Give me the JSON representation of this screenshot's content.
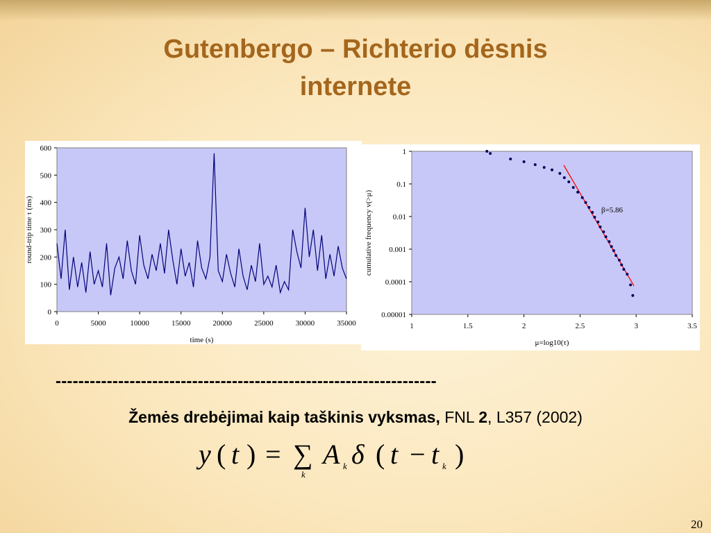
{
  "title": [
    "Gutenbergo – Richterio  dėsnis",
    "internete"
  ],
  "chart_data": [
    {
      "type": "line",
      "xlabel": "time (s)",
      "ylabel": "round-trip time τ (ms)",
      "color": "#00007a",
      "background": "#c8c8f8",
      "x": [
        0,
        500,
        1000,
        1500,
        2000,
        2500,
        3000,
        3500,
        4000,
        4500,
        5000,
        5500,
        6000,
        6500,
        7000,
        7500,
        8000,
        8500,
        9000,
        9500,
        10000,
        10500,
        11000,
        11500,
        12000,
        12500,
        13000,
        13500,
        14000,
        14500,
        15000,
        15500,
        16000,
        16500,
        17000,
        17500,
        18000,
        18500,
        19000,
        19500,
        20000,
        20500,
        21000,
        21500,
        22000,
        22500,
        23000,
        23500,
        24000,
        24500,
        25000,
        25500,
        26000,
        26500,
        27000,
        27500,
        28000,
        28500,
        29000,
        29500,
        30000,
        30500,
        31000,
        31500,
        32000,
        32500,
        33000,
        33500,
        34000,
        34500,
        35000
      ],
      "values": [
        250,
        120,
        300,
        80,
        200,
        90,
        180,
        70,
        220,
        100,
        150,
        90,
        250,
        60,
        160,
        200,
        120,
        260,
        150,
        100,
        280,
        170,
        120,
        210,
        150,
        250,
        140,
        300,
        190,
        100,
        230,
        130,
        180,
        90,
        260,
        160,
        120,
        200,
        580,
        150,
        110,
        210,
        140,
        90,
        230,
        130,
        80,
        170,
        110,
        250,
        100,
        130,
        90,
        170,
        70,
        110,
        80,
        300,
        220,
        160,
        380,
        200,
        300,
        150,
        280,
        120,
        210,
        130,
        240,
        160,
        120
      ],
      "xlim": [
        0,
        35000
      ],
      "ylim": [
        0,
        600
      ],
      "xticks": [
        0,
        5000,
        10000,
        15000,
        20000,
        25000,
        30000,
        35000
      ],
      "yticks": [
        0,
        100,
        200,
        300,
        400,
        500,
        600
      ]
    },
    {
      "type": "scatter",
      "xlabel": "μ=log10(τ)",
      "ylabel": "cumulative frequency  v(>μ)",
      "color": "#00005a",
      "background": "#c8c8f8",
      "ylog": true,
      "x": [
        1.67,
        1.7,
        1.88,
        2.0,
        2.1,
        2.18,
        2.25,
        2.32,
        2.36,
        2.4,
        2.44,
        2.48,
        2.52,
        2.55,
        2.58,
        2.61,
        2.63,
        2.66,
        2.68,
        2.71,
        2.73,
        2.76,
        2.78,
        2.8,
        2.82,
        2.85,
        2.87,
        2.89,
        2.92,
        2.95,
        2.97
      ],
      "values": [
        1,
        0.86,
        0.58,
        0.48,
        0.39,
        0.32,
        0.27,
        0.21,
        0.155,
        0.116,
        0.078,
        0.056,
        0.038,
        0.027,
        0.019,
        0.0134,
        0.0095,
        0.0068,
        0.0048,
        0.0034,
        0.0024,
        0.0017,
        0.0012,
        0.0009,
        0.00064,
        0.00046,
        0.00033,
        0.00024,
        0.00017,
        8e-05,
        3.8e-05
      ],
      "fit": {
        "x": [
          2.355,
          2.98
        ],
        "values": [
          0.375,
          7.5e-05
        ],
        "color": "#ff0000"
      },
      "annotation": "β=5.86",
      "xlim": [
        1,
        3.5
      ],
      "ylim": [
        1e-05,
        1
      ],
      "xticks": [
        1,
        1.5,
        2,
        2.5,
        3,
        3.5
      ],
      "yticks": [
        1e-05,
        0.0001,
        0.001,
        0.01,
        0.1,
        1
      ]
    }
  ],
  "separator": "-------------------------------------------------------------------",
  "reference": [
    "Žemės drebėjimai kaip taškinis vyksmas,",
    " FNL ",
    "2",
    ", L357 (2002)"
  ],
  "formula": [
    "y",
    "(",
    "t",
    ")",
    "=",
    "∑",
    "k",
    "A",
    "k",
    "δ",
    "(",
    "t",
    "−",
    "t",
    "k",
    ")"
  ],
  "page_number": "20"
}
